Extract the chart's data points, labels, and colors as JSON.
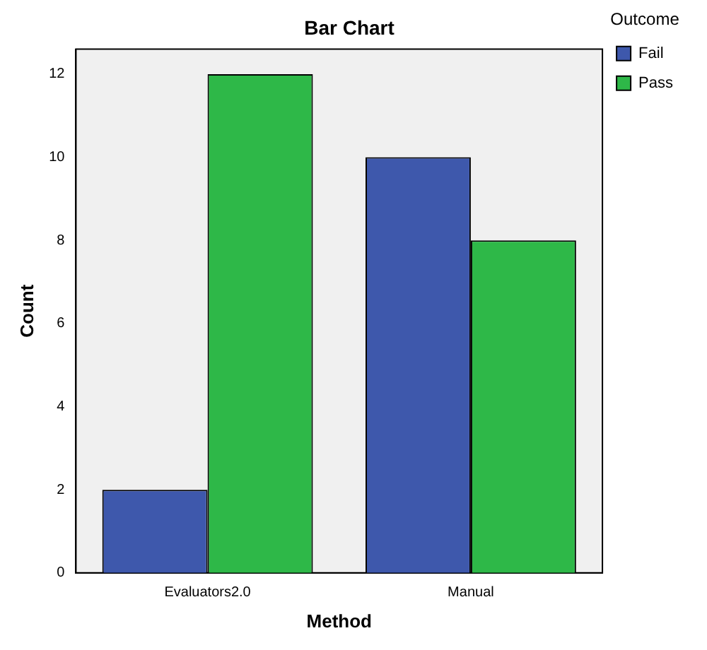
{
  "chart_data": {
    "type": "bar",
    "title": "Bar Chart",
    "xlabel": "Method",
    "ylabel": "Count",
    "legend_title": "Outcome",
    "categories": [
      "Evaluators2.0",
      "Manual"
    ],
    "series": [
      {
        "name": "Fail",
        "color": "#3e58ac",
        "values": [
          2,
          10
        ]
      },
      {
        "name": "Pass",
        "color": "#2eb848",
        "values": [
          12,
          8
        ]
      }
    ],
    "ylim": [
      0,
      12.6
    ],
    "yticks": [
      0,
      2,
      4,
      6,
      8,
      10,
      12
    ],
    "grid": false,
    "legend": "top right"
  }
}
